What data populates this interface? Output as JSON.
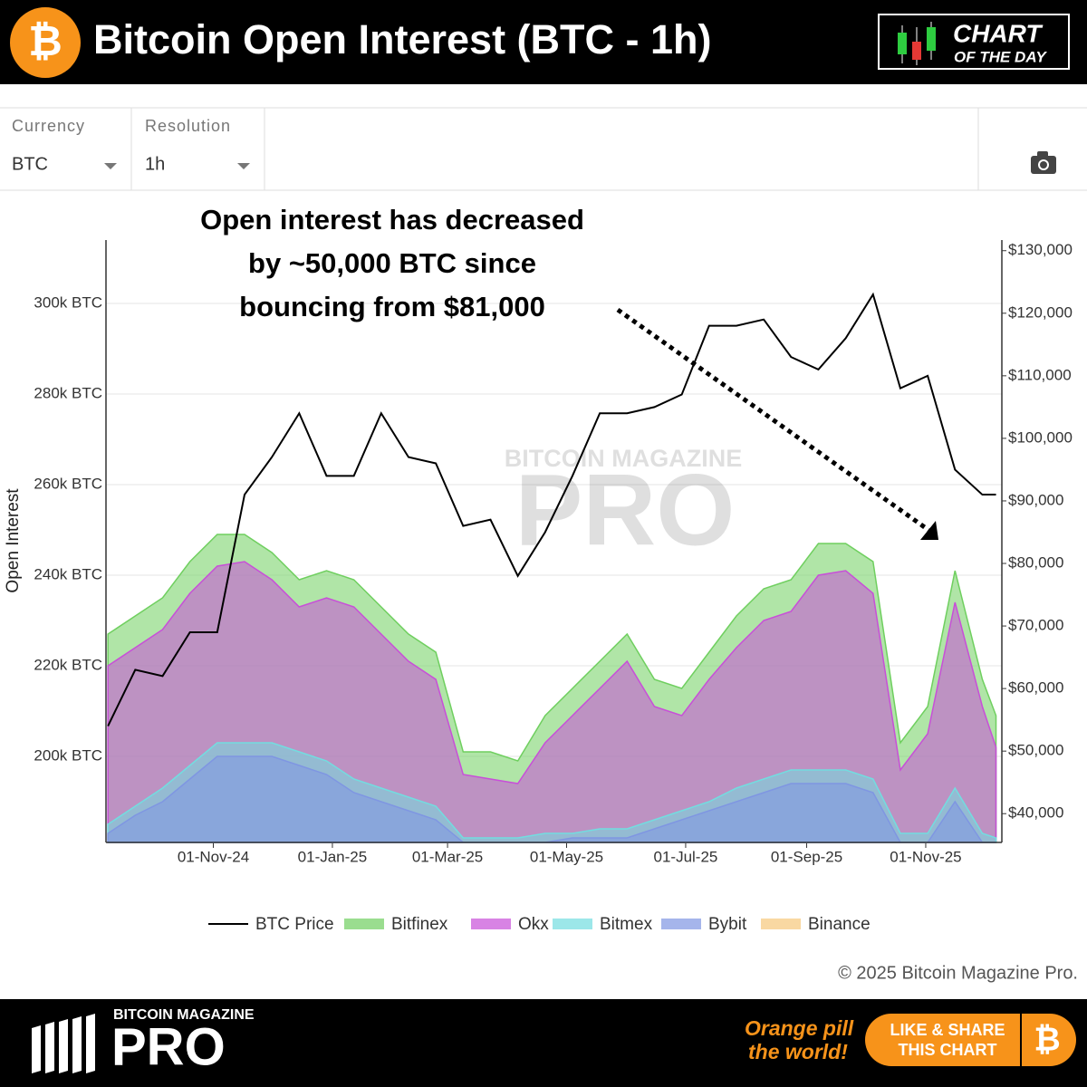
{
  "header": {
    "icon": "₿",
    "title": "Bitcoin Open Interest (BTC - 1h)",
    "badge": [
      "CHART",
      "OF THE DAY"
    ]
  },
  "controls": [
    {
      "label": "Currency",
      "value": "BTC"
    },
    {
      "label": "Resolution",
      "value": "1h"
    }
  ],
  "chart_data": {
    "type": "area",
    "annotation": [
      "Open interest has decreased",
      "by ~50,000 BTC since",
      "bouncing from $81,000"
    ],
    "watermark": [
      "BITCOIN MAGAZINE",
      "PRO"
    ],
    "y_label": "Open Interest",
    "x": [
      "2024-09-08",
      "2024-09-22",
      "2024-10-06",
      "2024-10-20",
      "2024-11-03",
      "2024-11-17",
      "2024-12-01",
      "2024-12-15",
      "2024-12-29",
      "2025-01-12",
      "2025-01-26",
      "2025-02-09",
      "2025-02-23",
      "2025-03-09",
      "2025-03-23",
      "2025-04-06",
      "2025-04-20",
      "2025-05-04",
      "2025-05-18",
      "2025-06-01",
      "2025-06-15",
      "2025-06-29",
      "2025-07-13",
      "2025-07-27",
      "2025-08-10",
      "2025-08-24",
      "2025-09-07",
      "2025-09-21",
      "2025-10-05",
      "2025-10-19",
      "2025-11-02",
      "2025-11-16",
      "2025-11-30",
      "2025-12-07"
    ],
    "xlim": [
      "2024-09-07",
      "2025-12-10"
    ],
    "xticks": [
      {
        "value": "2024-11-01",
        "label": "01-Nov-24"
      },
      {
        "value": "2025-01-01",
        "label": "01-Jan-25"
      },
      {
        "value": "2025-03-01",
        "label": "01-Mar-25"
      },
      {
        "value": "2025-05-01",
        "label": "01-May-25"
      },
      {
        "value": "2025-07-01",
        "label": "01-Jul-25"
      },
      {
        "value": "2025-09-01",
        "label": "01-Sep-25"
      },
      {
        "value": "2025-11-01",
        "label": "01-Nov-25"
      }
    ],
    "ylim": [
      181000,
      314000
    ],
    "yticks": [
      {
        "value": 200000,
        "label": "200k BTC"
      },
      {
        "value": 220000,
        "label": "220k BTC"
      },
      {
        "value": 240000,
        "label": "240k BTC"
      },
      {
        "value": 260000,
        "label": "260k BTC"
      },
      {
        "value": 280000,
        "label": "280k BTC"
      },
      {
        "value": 300000,
        "label": "300k BTC"
      }
    ],
    "y2lim": [
      35400,
      131700
    ],
    "y2ticks": [
      {
        "value": 40000,
        "label": "$40,000"
      },
      {
        "value": 50000,
        "label": "$50,000"
      },
      {
        "value": 60000,
        "label": "$60,000"
      },
      {
        "value": 70000,
        "label": "$70,000"
      },
      {
        "value": 80000,
        "label": "$80,000"
      },
      {
        "value": 90000,
        "label": "$90,000"
      },
      {
        "value": 100000,
        "label": "$100,000"
      },
      {
        "value": 110000,
        "label": "$110,000"
      },
      {
        "value": 120000,
        "label": "$120,000"
      },
      {
        "value": 130000,
        "label": "$130,000"
      }
    ],
    "grid": true,
    "legend": "bottom",
    "series": [
      {
        "name": "BTC Price",
        "color": "#000000",
        "axis": "y2",
        "kind": "line",
        "values": [
          54000,
          63000,
          62000,
          69000,
          69000,
          91000,
          97000,
          104000,
          94000,
          94000,
          104000,
          97000,
          96000,
          86000,
          87000,
          78000,
          85000,
          94000,
          104000,
          104000,
          105000,
          107000,
          118000,
          118000,
          119000,
          113000,
          111000,
          116000,
          123000,
          108000,
          110000,
          95000,
          91000,
          91000
        ]
      },
      {
        "name": "Bitfinex",
        "color": "#6fcf5f",
        "kind": "area",
        "values": [
          227000,
          231000,
          235000,
          243000,
          249000,
          249000,
          245000,
          239000,
          241000,
          239000,
          233000,
          227000,
          223000,
          201000,
          201000,
          199000,
          209000,
          215000,
          221000,
          227000,
          217000,
          215000,
          223000,
          231000,
          237000,
          239000,
          247000,
          247000,
          243000,
          203000,
          211000,
          241000,
          217000,
          209000
        ]
      },
      {
        "name": "Okx",
        "color": "#c84fd8",
        "kind": "area",
        "values": [
          220000,
          224000,
          228000,
          236000,
          242000,
          243000,
          239000,
          233000,
          235000,
          233000,
          227000,
          221000,
          217000,
          196000,
          195000,
          194000,
          203000,
          209000,
          215000,
          221000,
          211000,
          209000,
          217000,
          224000,
          230000,
          232000,
          240000,
          241000,
          236000,
          197000,
          205000,
          234000,
          211000,
          202000
        ]
      },
      {
        "name": "Bitmex",
        "color": "#72dde0",
        "kind": "area",
        "values": [
          185000,
          189000,
          193000,
          198000,
          203000,
          203000,
          203000,
          201000,
          199000,
          195000,
          193000,
          191000,
          189000,
          182000,
          182000,
          182000,
          183000,
          183000,
          184000,
          184000,
          186000,
          188000,
          190000,
          193000,
          195000,
          197000,
          197000,
          197000,
          195000,
          183000,
          183000,
          193000,
          183000,
          182000
        ]
      },
      {
        "name": "Bybit",
        "color": "#7f96e2",
        "kind": "area",
        "values": [
          183000,
          187000,
          190000,
          195000,
          200000,
          200000,
          200000,
          198000,
          196000,
          192000,
          190000,
          188000,
          186000,
          181000,
          181000,
          181000,
          181000,
          182000,
          182000,
          182000,
          184000,
          186000,
          188000,
          190000,
          192000,
          194000,
          194000,
          194000,
          192000,
          181000,
          181000,
          190000,
          181000,
          181000
        ]
      },
      {
        "name": "Binance",
        "color": "#f7c77a",
        "kind": "area",
        "values": [
          null,
          null,
          null,
          null,
          null,
          null,
          null,
          null,
          null,
          null,
          null,
          null,
          null,
          null,
          null,
          null,
          null,
          null,
          null,
          null,
          null,
          null,
          null,
          null,
          null,
          null,
          null,
          null,
          null,
          null,
          null,
          null,
          null,
          null
        ]
      }
    ],
    "copyright": "© 2025 Bitcoin Magazine Pro."
  },
  "footer": {
    "brand": [
      "BITCOIN MAGAZINE",
      "PRO"
    ],
    "slogan": [
      "Orange pill",
      "the world!"
    ],
    "button": [
      "LIKE & SHARE",
      "THIS CHART"
    ],
    "icon": "₿"
  }
}
